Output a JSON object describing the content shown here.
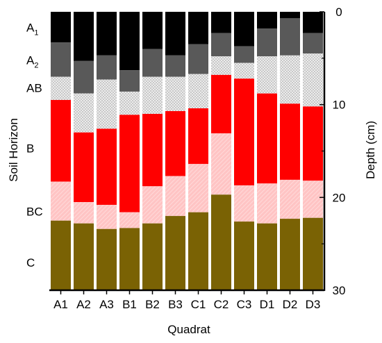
{
  "chart_data": {
    "type": "bar",
    "stacked": true,
    "orientation": "vertical-inverted-depth",
    "title": "",
    "xlabel": "Quadrat",
    "ylabel": "Depth (cm)",
    "left_label": "Soil Horizon",
    "ylim": [
      0,
      30
    ],
    "y_ticks": [
      "0",
      "10",
      "20",
      "30"
    ],
    "y_tick_values": [
      0,
      10,
      20,
      30
    ],
    "categories": [
      "A1",
      "A2",
      "A3",
      "B1",
      "B2",
      "B3",
      "C1",
      "C2",
      "C3",
      "D1",
      "D2",
      "D3"
    ],
    "horizon_labels": [
      {
        "base": "A",
        "sub": "1",
        "depth": 1.7
      },
      {
        "base": "A",
        "sub": "2",
        "depth": 5.2
      },
      {
        "base": "AB",
        "sub": "",
        "depth": 8.2
      },
      {
        "base": "B",
        "sub": "",
        "depth": 14.7
      },
      {
        "base": "BC",
        "sub": "",
        "depth": 21.5
      },
      {
        "base": "C",
        "sub": "",
        "depth": 27.0
      }
    ],
    "series": [
      {
        "name": "A1",
        "color": "#000000",
        "pattern": "solid",
        "values": [
          3.3,
          5.3,
          4.7,
          6.3,
          4.0,
          4.7,
          3.5,
          2.3,
          3.7,
          1.8,
          0.7,
          2.3
        ]
      },
      {
        "name": "A2",
        "color": "#595959",
        "pattern": "solid",
        "values": [
          3.7,
          3.5,
          2.6,
          2.3,
          3.0,
          2.3,
          3.2,
          2.5,
          1.8,
          3.0,
          4.0,
          2.2
        ]
      },
      {
        "name": "AB",
        "color": "#cfcfcf",
        "pattern": "dots",
        "values": [
          2.5,
          4.2,
          5.3,
          2.5,
          4.0,
          3.7,
          3.7,
          2.0,
          1.7,
          4.0,
          5.2,
          5.7
        ]
      },
      {
        "name": "B",
        "color": "#ff0000",
        "pattern": "solid",
        "values": [
          8.8,
          7.5,
          8.2,
          10.5,
          7.8,
          7.0,
          6.0,
          6.3,
          11.5,
          9.7,
          8.2,
          8.0
        ]
      },
      {
        "name": "BC",
        "color": "#ffc0c0",
        "pattern": "hatch",
        "values": [
          4.2,
          2.3,
          2.6,
          1.7,
          4.0,
          4.3,
          5.2,
          6.6,
          3.9,
          4.3,
          4.2,
          4.0
        ]
      },
      {
        "name": "C",
        "color": "#7a6204",
        "pattern": "solid",
        "values": [
          7.5,
          7.2,
          6.6,
          6.7,
          7.2,
          8.0,
          8.4,
          10.3,
          7.4,
          7.2,
          7.7,
          7.8
        ]
      }
    ]
  }
}
